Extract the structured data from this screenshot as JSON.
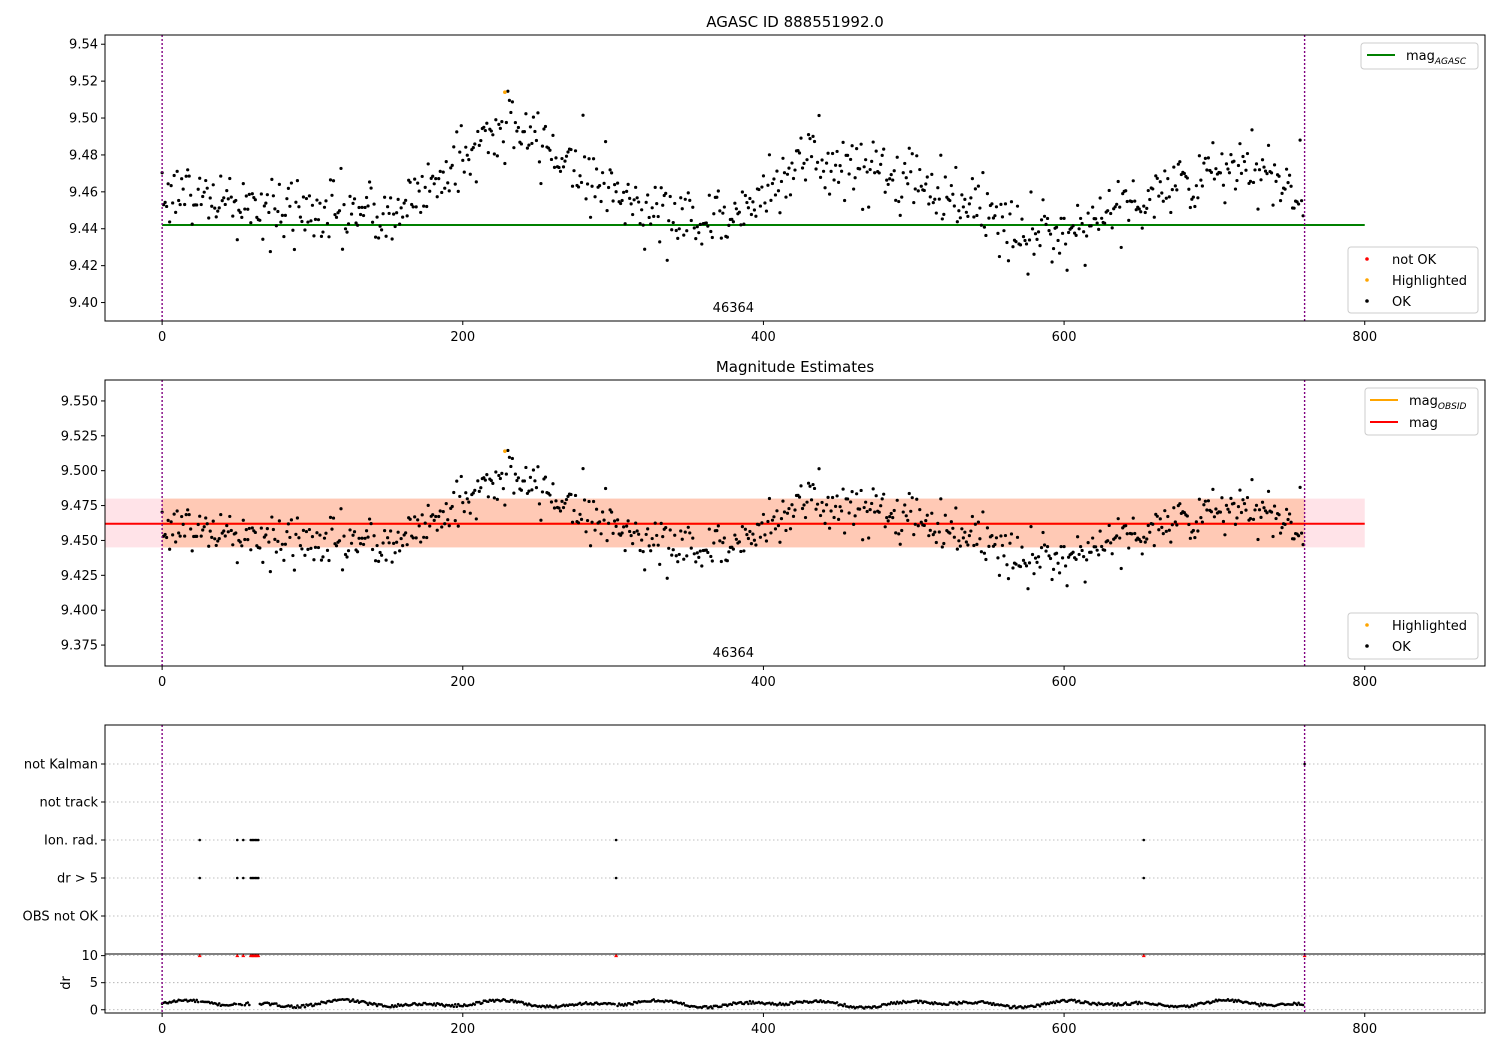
{
  "figure": {
    "title": "AGASC ID 888551992.0"
  },
  "chart_data": [
    {
      "type": "scatter",
      "title": "AGASC ID 888551992.0",
      "xlim": [
        -38,
        880
      ],
      "ylim": [
        9.39,
        9.545
      ],
      "yticks": [
        9.4,
        9.42,
        9.44,
        9.46,
        9.48,
        9.5,
        9.52,
        9.54
      ],
      "ytick_labels": [
        "9.40",
        "9.42",
        "9.44",
        "9.46",
        "9.48",
        "9.50",
        "9.52",
        "9.54"
      ],
      "xticks": [
        0,
        200,
        400,
        600,
        800
      ],
      "xtick_labels": [
        "0",
        "200",
        "400",
        "600",
        "800"
      ],
      "obsid_label": "46364",
      "obsid_label_x": 380,
      "vlines_x": [
        0,
        760
      ],
      "hline": {
        "name": "mag$_{AGASC}$",
        "label_main": "mag",
        "label_sub": "AGASC",
        "y": 9.442,
        "x0": 0,
        "x1": 800,
        "color": "#008000"
      },
      "n_points": 760,
      "curve": {
        "base": 9.458,
        "knots_x": [
          0,
          40,
          80,
          120,
          150,
          175,
          205,
          230,
          255,
          285,
          310,
          345,
          380,
          400,
          430,
          460,
          500,
          540,
          565,
          590,
          620,
          660,
          700,
          730,
          760
        ],
        "knots_y": [
          9.462,
          9.455,
          9.448,
          9.45,
          9.445,
          9.462,
          9.482,
          9.496,
          9.485,
          9.47,
          9.455,
          9.446,
          9.445,
          9.462,
          9.478,
          9.474,
          9.466,
          9.455,
          9.437,
          9.437,
          9.445,
          9.46,
          9.47,
          9.47,
          9.462
        ],
        "noise": 0.01
      },
      "highlighted_points": [
        {
          "x": 228,
          "y": 9.514
        }
      ],
      "legend_line": {
        "position": "top-right"
      },
      "legend_points": {
        "position": "bottom-right",
        "entries": [
          {
            "label": "not OK",
            "color": "#ff0000"
          },
          {
            "label": "Highlighted",
            "color": "#ffa500"
          },
          {
            "label": "OK",
            "color": "#000000"
          }
        ]
      }
    },
    {
      "type": "scatter",
      "title": "Magnitude Estimates",
      "xlim": [
        -38,
        880
      ],
      "ylim": [
        9.36,
        9.565
      ],
      "yticks": [
        9.375,
        9.4,
        9.425,
        9.45,
        9.475,
        9.5,
        9.525,
        9.55
      ],
      "ytick_labels": [
        "9.375",
        "9.400",
        "9.425",
        "9.450",
        "9.475",
        "9.500",
        "9.525",
        "9.550"
      ],
      "xticks": [
        0,
        200,
        400,
        600,
        800
      ],
      "xtick_labels": [
        "0",
        "200",
        "400",
        "600",
        "800"
      ],
      "obsid_label": "46364",
      "obsid_label_x": 380,
      "vlines_x": [
        0,
        760
      ],
      "bands": [
        {
          "x0": -38,
          "x1": 800,
          "y0": 9.445,
          "y1": 9.48,
          "color": "#ffc0cb",
          "opacity": 0.45
        },
        {
          "x0": 0,
          "x1": 760,
          "y0": 9.445,
          "y1": 9.48,
          "color": "#ffa060",
          "opacity": 0.38
        }
      ],
      "lines": [
        {
          "name": "mag$_{OBSID}$",
          "label_main": "mag",
          "label_sub": "OBSID",
          "y": 9.462,
          "x0": 0,
          "x1": 760,
          "color": "#ffa500"
        },
        {
          "name": "mag",
          "label_main": "mag",
          "label_sub": "",
          "y": 9.462,
          "x0": -38,
          "x1": 800,
          "color": "#ff0000"
        }
      ],
      "highlighted_points": [
        {
          "x": 228,
          "y": 9.514
        }
      ],
      "legend_line": {
        "position": "top-right"
      },
      "legend_points": {
        "position": "bottom-right",
        "entries": [
          {
            "label": "Highlighted",
            "color": "#ffa500"
          },
          {
            "label": "OK",
            "color": "#000000"
          }
        ]
      }
    },
    {
      "type": "scatter",
      "title": "",
      "xlim": [
        -38,
        880
      ],
      "categories": [
        "OBS not OK",
        "dr > 5",
        "Ion. rad.",
        "not track",
        "not Kalman"
      ],
      "vlines_x": [
        0,
        760
      ],
      "flag_points": {
        "Ion. rad.": [
          25,
          50,
          54,
          59,
          60,
          61,
          62,
          63,
          64,
          302,
          653
        ],
        "dr > 5": [
          25,
          50,
          54,
          59,
          60,
          61,
          62,
          63,
          64,
          302,
          653
        ],
        "not Kalman": [
          760
        ]
      }
    },
    {
      "type": "scatter",
      "title": "",
      "ylabel": "dr",
      "xlim": [
        -38,
        880
      ],
      "ylim": [
        -0.6,
        10.3
      ],
      "yticks": [
        0,
        5,
        10
      ],
      "ytick_labels": [
        "0",
        "5",
        "10"
      ],
      "xticks": [
        0,
        200,
        400,
        600,
        800
      ],
      "xtick_labels": [
        "0",
        "200",
        "400",
        "600",
        "800"
      ],
      "vlines_x": [
        0,
        760
      ],
      "clipped_points_x": [
        25,
        50,
        54,
        59,
        60,
        61,
        62,
        63,
        64,
        302,
        653,
        760
      ],
      "clipped_at": 10,
      "dr_base": 1.1,
      "dr_amplitude": 0.7
    }
  ]
}
